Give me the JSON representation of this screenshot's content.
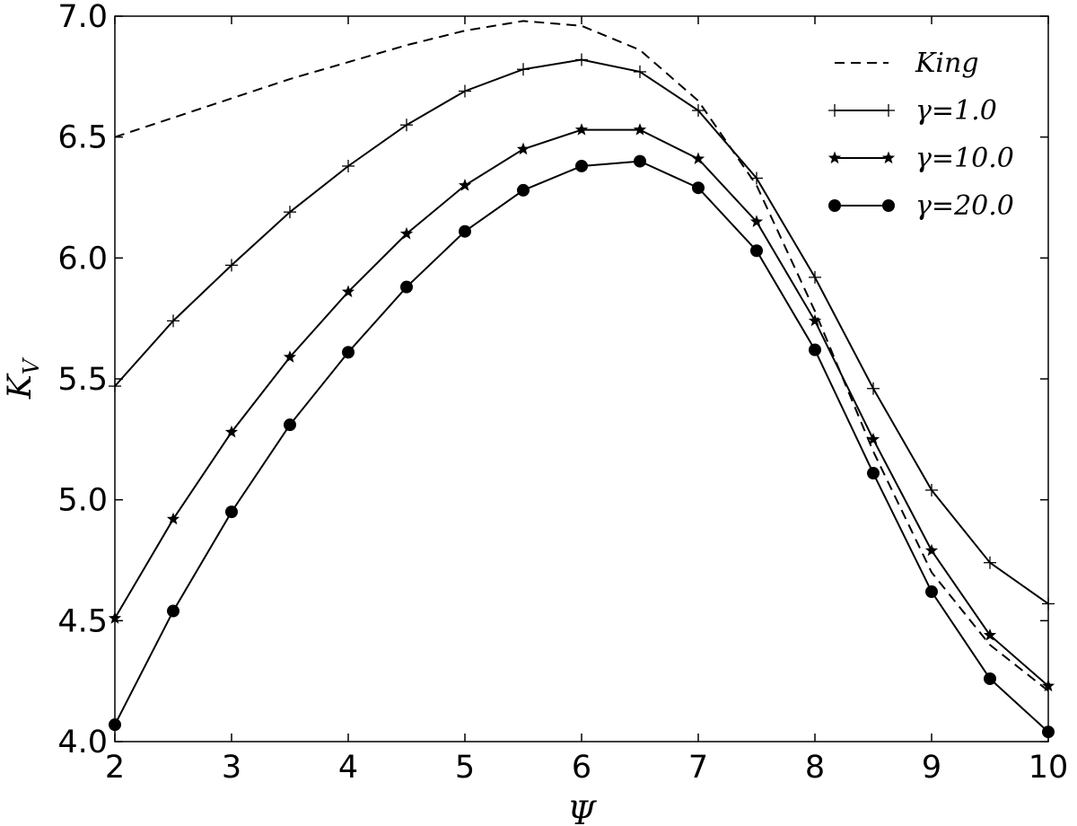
{
  "chart_data": {
    "type": "line",
    "xlabel": "Ψ",
    "ylabel_main": "K",
    "ylabel_sub": "V",
    "xlim": [
      2,
      10
    ],
    "ylim": [
      4.0,
      7.0
    ],
    "xticks": [
      "2",
      "3",
      "4",
      "5",
      "6",
      "7",
      "8",
      "9",
      "10"
    ],
    "yticks": [
      "4.0",
      "4.5",
      "5.0",
      "5.5",
      "6.0",
      "6.5",
      "7.0"
    ],
    "grid": false,
    "legend_position": "top-right",
    "x": [
      2,
      2.5,
      3,
      3.5,
      4,
      4.5,
      5,
      5.5,
      6,
      6.5,
      7,
      7.5,
      8,
      8.5,
      9,
      9.5,
      10
    ],
    "series": [
      {
        "name": "King",
        "style": "dashed",
        "marker": "none",
        "values": [
          6.5,
          6.58,
          6.66,
          6.74,
          6.81,
          6.88,
          6.94,
          6.98,
          6.96,
          6.86,
          6.65,
          6.3,
          5.78,
          5.2,
          4.7,
          4.4,
          4.21
        ]
      },
      {
        "name": "γ=1.0",
        "style": "solid",
        "marker": "plus",
        "values": [
          5.47,
          5.74,
          5.97,
          6.19,
          6.38,
          6.55,
          6.69,
          6.78,
          6.82,
          6.77,
          6.61,
          6.33,
          5.92,
          5.46,
          5.04,
          4.74,
          4.57
        ]
      },
      {
        "name": "γ=10.0",
        "style": "solid",
        "marker": "star",
        "values": [
          4.51,
          4.92,
          5.28,
          5.59,
          5.86,
          6.1,
          6.3,
          6.45,
          6.53,
          6.53,
          6.41,
          6.15,
          5.74,
          5.25,
          4.79,
          4.44,
          4.23
        ]
      },
      {
        "name": "γ=20.0",
        "style": "solid",
        "marker": "circle",
        "values": [
          4.07,
          4.54,
          4.95,
          5.31,
          5.61,
          5.88,
          6.11,
          6.28,
          6.38,
          6.4,
          6.29,
          6.03,
          5.62,
          5.11,
          4.62,
          4.26,
          4.04
        ]
      }
    ]
  }
}
